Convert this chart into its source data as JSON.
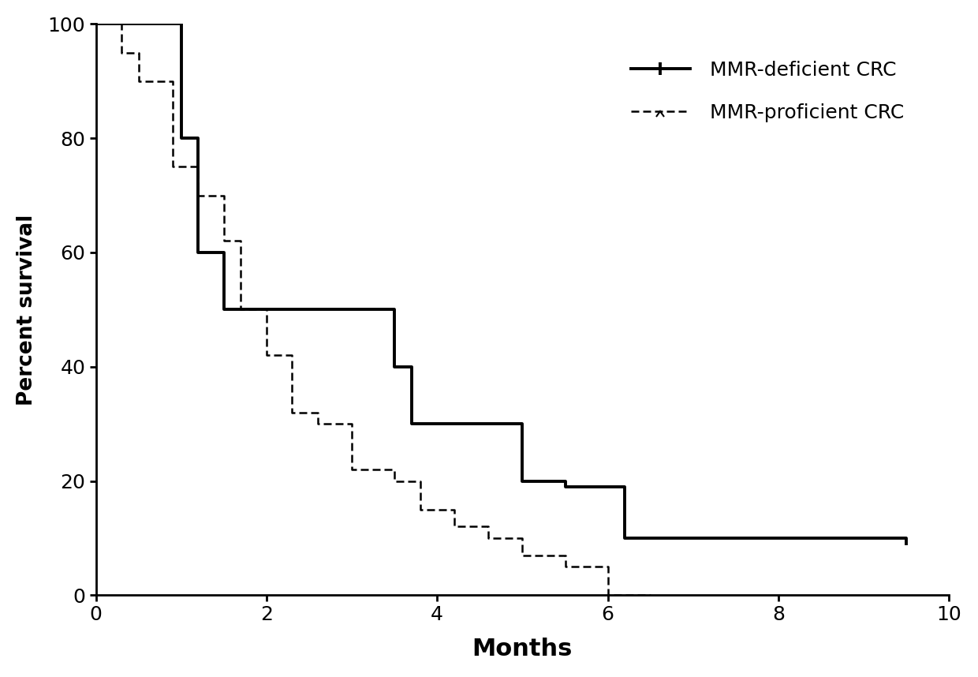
{
  "mmr_deficient_x": [
    0,
    1.0,
    1.0,
    1.2,
    1.2,
    1.5,
    1.5,
    3.5,
    3.5,
    3.7,
    3.7,
    5.0,
    5.0,
    5.5,
    5.5,
    6.2,
    6.2,
    9.5,
    9.5
  ],
  "mmr_deficient_y": [
    100,
    100,
    80,
    80,
    60,
    60,
    50,
    50,
    40,
    40,
    30,
    30,
    20,
    20,
    19,
    19,
    10,
    10,
    9
  ],
  "mmr_proficient_x": [
    0,
    0.3,
    0.3,
    0.5,
    0.5,
    0.9,
    0.9,
    1.2,
    1.2,
    1.5,
    1.5,
    1.7,
    1.7,
    2.0,
    2.0,
    2.3,
    2.3,
    2.6,
    2.6,
    3.0,
    3.0,
    3.5,
    3.5,
    3.8,
    3.8,
    4.2,
    4.2,
    4.6,
    4.6,
    5.0,
    5.0,
    5.5,
    5.5,
    6.0,
    6.0,
    6.5
  ],
  "mmr_proficient_y": [
    100,
    100,
    95,
    95,
    90,
    90,
    75,
    75,
    70,
    70,
    62,
    62,
    50,
    50,
    42,
    42,
    32,
    32,
    30,
    30,
    22,
    22,
    20,
    20,
    15,
    15,
    12,
    12,
    10,
    10,
    7,
    7,
    5,
    5,
    0,
    0
  ],
  "xlabel": "Months",
  "ylabel": "Percent survival",
  "xlim": [
    0,
    10
  ],
  "ylim": [
    0,
    100
  ],
  "xticks": [
    0,
    2,
    4,
    6,
    8,
    10
  ],
  "yticks": [
    0,
    20,
    40,
    60,
    80,
    100
  ],
  "legend_label1": "MMR-deficient CRC",
  "legend_label2": "MMR-proficient CRC",
  "line_color": "#000000",
  "linewidth_solid": 2.8,
  "linewidth_dashed": 1.8,
  "background_color": "#ffffff",
  "xlabel_fontsize": 22,
  "ylabel_fontsize": 19,
  "tick_fontsize": 18,
  "legend_fontsize": 18
}
